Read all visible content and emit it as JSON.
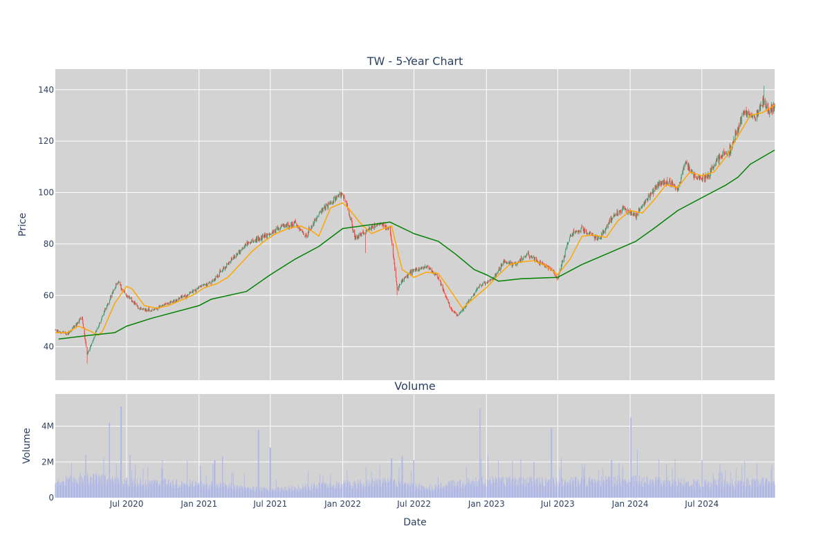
{
  "chart_data": {
    "type": "candlestick",
    "title": "TW - 5-Year Chart",
    "colors": {
      "increasing": "#3d9970",
      "decreasing": "#ff4136",
      "ma_short": "#ffa500",
      "ma_long": "#008000",
      "volume": "#b0b8e8",
      "plot_bg": "#d3d3d3",
      "grid": "#ffffff",
      "text": "#2a3f5f"
    },
    "x_range": [
      "2020-01-02",
      "2025-01-02"
    ],
    "date_ticks": [
      "2020-07-01",
      "2021-01-01",
      "2021-07-01",
      "2022-01-01",
      "2022-07-01",
      "2023-01-01",
      "2023-07-01",
      "2024-01-01",
      "2024-07-01"
    ],
    "date_tick_labels": [
      "Jul 2020",
      "Jan 2021",
      "Jul 2021",
      "Jan 2022",
      "Jul 2022",
      "Jan 2023",
      "Jul 2023",
      "Jan 2024",
      "Jul 2024"
    ],
    "price": {
      "ylabel": "Price",
      "ylim": [
        27,
        148
      ],
      "yticks": [
        40,
        60,
        80,
        100,
        120,
        140
      ],
      "ytick_labels": [
        "40",
        "60",
        "80",
        "100",
        "120",
        "140"
      ],
      "anchors": [
        [
          "2020-01-02",
          46.5
        ],
        [
          "2020-02-01",
          45.0
        ],
        [
          "2020-02-20",
          48.0
        ],
        [
          "2020-03-10",
          51.5
        ],
        [
          "2020-03-23",
          37.0
        ],
        [
          "2020-04-05",
          42.0
        ],
        [
          "2020-05-01",
          52.0
        ],
        [
          "2020-06-01",
          63.0
        ],
        [
          "2020-06-10",
          65.0
        ],
        [
          "2020-07-01",
          60.0
        ],
        [
          "2020-08-01",
          55.0
        ],
        [
          "2020-09-01",
          54.0
        ],
        [
          "2020-10-01",
          56.0
        ],
        [
          "2020-11-01",
          58.0
        ],
        [
          "2020-12-01",
          60.0
        ],
        [
          "2021-01-01",
          63.0
        ],
        [
          "2021-02-01",
          65.0
        ],
        [
          "2021-03-01",
          70.0
        ],
        [
          "2021-04-01",
          75.0
        ],
        [
          "2021-05-01",
          80.0
        ],
        [
          "2021-06-01",
          82.0
        ],
        [
          "2021-07-01",
          84.0
        ],
        [
          "2021-08-01",
          87.0
        ],
        [
          "2021-09-01",
          88.0
        ],
        [
          "2021-10-01",
          83.0
        ],
        [
          "2021-11-01",
          92.0
        ],
        [
          "2021-12-01",
          96.0
        ],
        [
          "2021-12-31",
          100.0
        ],
        [
          "2022-01-10",
          96.0
        ],
        [
          "2022-02-01",
          82.0
        ],
        [
          "2022-03-01",
          85.0
        ],
        [
          "2022-04-01",
          88.0
        ],
        [
          "2022-05-01",
          86.0
        ],
        [
          "2022-05-20",
          62.0
        ],
        [
          "2022-06-01",
          66.0
        ],
        [
          "2022-07-01",
          70.0
        ],
        [
          "2022-08-01",
          71.0
        ],
        [
          "2022-09-01",
          67.0
        ],
        [
          "2022-10-01",
          55.0
        ],
        [
          "2022-10-20",
          52.0
        ],
        [
          "2022-11-15",
          57.0
        ],
        [
          "2022-12-15",
          64.0
        ],
        [
          "2023-01-15",
          66.0
        ],
        [
          "2023-02-15",
          73.0
        ],
        [
          "2023-03-15",
          72.0
        ],
        [
          "2023-04-15",
          76.0
        ],
        [
          "2023-05-15",
          73.0
        ],
        [
          "2023-06-15",
          70.0
        ],
        [
          "2023-07-01",
          66.5
        ],
        [
          "2023-08-01",
          83.0
        ],
        [
          "2023-09-01",
          86.0
        ],
        [
          "2023-10-15",
          82.0
        ],
        [
          "2023-11-15",
          90.0
        ],
        [
          "2023-12-15",
          94.0
        ],
        [
          "2024-01-15",
          91.0
        ],
        [
          "2024-02-15",
          98.0
        ],
        [
          "2024-03-15",
          104.0
        ],
        [
          "2024-04-15",
          104.0
        ],
        [
          "2024-05-01",
          101.0
        ],
        [
          "2024-05-20",
          111.0
        ],
        [
          "2024-06-15",
          106.0
        ],
        [
          "2024-07-15",
          106.0
        ],
        [
          "2024-08-15",
          114.0
        ],
        [
          "2024-09-15",
          117.0
        ],
        [
          "2024-10-15",
          131.0
        ],
        [
          "2024-11-15",
          129.0
        ],
        [
          "2024-12-01",
          136.0
        ],
        [
          "2024-12-15",
          132.0
        ],
        [
          "2025-01-02",
          133.0
        ]
      ],
      "spikes": [
        [
          "2020-03-23",
          33.5,
          false
        ],
        [
          "2022-02-28",
          76.5,
          false
        ],
        [
          "2022-05-19",
          60.0,
          false
        ],
        [
          "2024-12-06",
          141.5,
          true
        ]
      ],
      "ma_short": [
        [
          "2020-01-02",
          45.5
        ],
        [
          "2020-02-01",
          45.5
        ],
        [
          "2020-03-01",
          48.0
        ],
        [
          "2020-04-01",
          46.0
        ],
        [
          "2020-04-20",
          44.5
        ],
        [
          "2020-05-01",
          46.0
        ],
        [
          "2020-06-01",
          57.0
        ],
        [
          "2020-07-01",
          63.5
        ],
        [
          "2020-07-15",
          62.5
        ],
        [
          "2020-08-15",
          56.0
        ],
        [
          "2020-09-15",
          55.0
        ],
        [
          "2020-10-15",
          56.0
        ],
        [
          "2020-11-15",
          58.0
        ],
        [
          "2020-12-15",
          60.0
        ],
        [
          "2021-01-15",
          63.0
        ],
        [
          "2021-02-15",
          64.5
        ],
        [
          "2021-03-15",
          67.0
        ],
        [
          "2021-04-15",
          72.0
        ],
        [
          "2021-05-15",
          77.0
        ],
        [
          "2021-06-15",
          81.0
        ],
        [
          "2021-07-15",
          84.0
        ],
        [
          "2021-08-15",
          86.0
        ],
        [
          "2021-09-15",
          87.0
        ],
        [
          "2021-10-15",
          85.0
        ],
        [
          "2021-11-01",
          83.0
        ],
        [
          "2021-12-01",
          94.0
        ],
        [
          "2021-12-31",
          96.0
        ],
        [
          "2022-01-15",
          94.0
        ],
        [
          "2022-02-15",
          88.0
        ],
        [
          "2022-03-15",
          84.0
        ],
        [
          "2022-04-15",
          86.0
        ],
        [
          "2022-05-05",
          87.0
        ],
        [
          "2022-06-01",
          70.0
        ],
        [
          "2022-07-01",
          67.0
        ],
        [
          "2022-08-01",
          69.0
        ],
        [
          "2022-09-01",
          68.5
        ],
        [
          "2022-10-01",
          62.0
        ],
        [
          "2022-11-01",
          55.0
        ],
        [
          "2022-12-01",
          59.0
        ],
        [
          "2023-01-01",
          63.0
        ],
        [
          "2023-02-01",
          68.0
        ],
        [
          "2023-03-01",
          72.0
        ],
        [
          "2023-04-01",
          73.0
        ],
        [
          "2023-05-01",
          73.5
        ],
        [
          "2023-06-01",
          71.5
        ],
        [
          "2023-07-01",
          68.0
        ],
        [
          "2023-08-01",
          74.0
        ],
        [
          "2023-09-01",
          83.0
        ],
        [
          "2023-10-01",
          83.5
        ],
        [
          "2023-11-01",
          82.5
        ],
        [
          "2023-12-01",
          89.0
        ],
        [
          "2024-01-01",
          93.0
        ],
        [
          "2024-02-01",
          92.0
        ],
        [
          "2024-03-01",
          97.0
        ],
        [
          "2024-04-01",
          103.0
        ],
        [
          "2024-05-01",
          102.0
        ],
        [
          "2024-06-01",
          108.0
        ],
        [
          "2024-07-01",
          106.5
        ],
        [
          "2024-08-01",
          108.0
        ],
        [
          "2024-09-01",
          114.0
        ],
        [
          "2024-10-01",
          122.0
        ],
        [
          "2024-11-01",
          130.0
        ],
        [
          "2024-12-01",
          131.0
        ],
        [
          "2025-01-02",
          134.0
        ]
      ],
      "ma_long": [
        [
          "2020-01-10",
          43.0
        ],
        [
          "2020-04-01",
          44.5
        ],
        [
          "2020-06-01",
          45.5
        ],
        [
          "2020-07-01",
          48.0
        ],
        [
          "2020-09-01",
          51.0
        ],
        [
          "2021-01-01",
          56.0
        ],
        [
          "2021-02-01",
          58.5
        ],
        [
          "2021-05-01",
          61.5
        ],
        [
          "2021-07-01",
          68.0
        ],
        [
          "2021-09-01",
          74.0
        ],
        [
          "2021-11-01",
          79.0
        ],
        [
          "2022-01-01",
          86.0
        ],
        [
          "2022-05-01",
          88.5
        ],
        [
          "2022-07-01",
          84.0
        ],
        [
          "2022-09-01",
          81.0
        ],
        [
          "2022-10-15",
          76.0
        ],
        [
          "2022-12-01",
          70.0
        ],
        [
          "2023-01-01",
          68.0
        ],
        [
          "2023-02-01",
          65.5
        ],
        [
          "2023-04-01",
          66.5
        ],
        [
          "2023-07-01",
          67.0
        ],
        [
          "2023-09-01",
          72.0
        ],
        [
          "2023-12-01",
          78.0
        ],
        [
          "2024-01-15",
          81.0
        ],
        [
          "2024-03-01",
          86.0
        ],
        [
          "2024-05-01",
          93.0
        ],
        [
          "2024-07-01",
          98.0
        ],
        [
          "2024-09-01",
          103.0
        ],
        [
          "2024-10-01",
          106.0
        ],
        [
          "2024-11-01",
          111.0
        ],
        [
          "2025-01-02",
          116.5
        ]
      ]
    },
    "volume": {
      "title": "Volume",
      "ylabel": "Volume",
      "ylim": [
        0,
        5800000
      ],
      "yticks": [
        0,
        2000000,
        4000000
      ],
      "ytick_labels": [
        "0",
        "2M",
        "4M"
      ],
      "base_levels": [
        [
          "2020-01-02",
          900000
        ],
        [
          "2020-03-15",
          1300000
        ],
        [
          "2020-07-01",
          1000000
        ],
        [
          "2021-01-01",
          900000
        ],
        [
          "2021-07-01",
          500000
        ],
        [
          "2021-12-01",
          800000
        ],
        [
          "2022-05-01",
          1000000
        ],
        [
          "2022-08-01",
          600000
        ],
        [
          "2022-12-01",
          1100000
        ],
        [
          "2023-06-01",
          1000000
        ],
        [
          "2024-01-01",
          1100000
        ],
        [
          "2024-07-01",
          900000
        ],
        [
          "2025-01-02",
          1000000
        ]
      ],
      "spikes": [
        [
          "2020-03-20",
          2400000
        ],
        [
          "2020-05-18",
          4200000
        ],
        [
          "2020-06-17",
          5100000
        ],
        [
          "2020-07-10",
          2400000
        ],
        [
          "2021-01-04",
          1800000
        ],
        [
          "2021-02-10",
          2100000
        ],
        [
          "2021-03-01",
          2300000
        ],
        [
          "2021-06-01",
          3800000
        ],
        [
          "2021-07-01",
          2800000
        ],
        [
          "2022-05-05",
          2200000
        ],
        [
          "2022-06-01",
          2300000
        ],
        [
          "2022-07-01",
          2100000
        ],
        [
          "2022-12-16",
          5000000
        ],
        [
          "2023-05-01",
          2000000
        ],
        [
          "2023-06-15",
          3900000
        ],
        [
          "2023-11-15",
          2100000
        ],
        [
          "2024-01-03",
          4500000
        ],
        [
          "2024-01-20",
          2700000
        ],
        [
          "2024-07-01",
          2100000
        ]
      ],
      "xlabel": "Date"
    }
  }
}
